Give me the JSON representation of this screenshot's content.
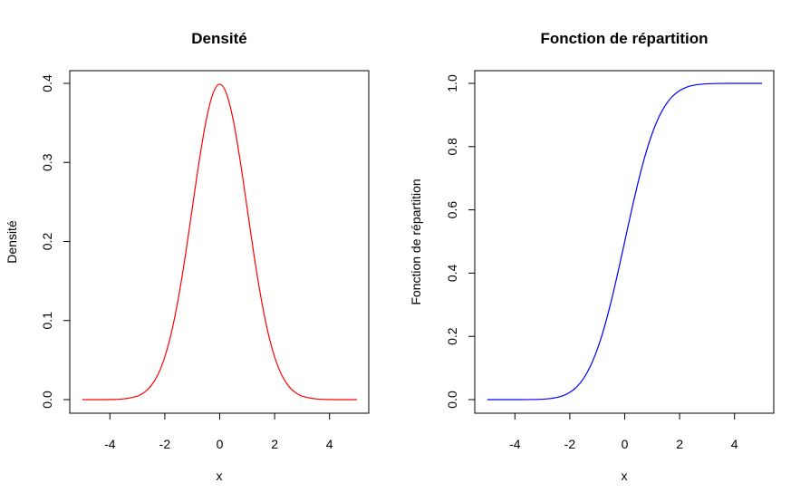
{
  "chart_data": [
    {
      "type": "line",
      "title": "Densité",
      "xlabel": "x",
      "ylabel": "Densité",
      "xlim": [
        -5,
        5
      ],
      "ylim": [
        0,
        0.4
      ],
      "x_ticks": [
        "-4",
        "-2",
        "0",
        "2",
        "4"
      ],
      "y_ticks": [
        "0.0",
        "0.1",
        "0.2",
        "0.3",
        "0.4"
      ],
      "grid": false,
      "series": [
        {
          "color": "#ff0000",
          "x": [
            -5,
            -4.5,
            -4,
            -3.5,
            -3,
            -2.75,
            -2.5,
            -2.25,
            -2,
            -1.75,
            -1.5,
            -1.25,
            -1,
            -0.75,
            -0.5,
            -0.25,
            0,
            0.25,
            0.5,
            0.75,
            1,
            1.25,
            1.5,
            1.75,
            2,
            2.25,
            2.5,
            2.75,
            3,
            3.5,
            4,
            4.5,
            5
          ],
          "y": [
            0.0,
            0.0,
            0.0001,
            0.0009,
            0.0044,
            0.0091,
            0.0175,
            0.0317,
            0.054,
            0.0863,
            0.1295,
            0.1826,
            0.242,
            0.3011,
            0.3521,
            0.3867,
            0.3989,
            0.3867,
            0.3521,
            0.3011,
            0.242,
            0.1826,
            0.1295,
            0.0863,
            0.054,
            0.0317,
            0.0175,
            0.0091,
            0.0044,
            0.0009,
            0.0001,
            0.0,
            0.0
          ]
        }
      ]
    },
    {
      "type": "line",
      "title": "Fonction de répartition",
      "xlabel": "x",
      "ylabel": "Fonction de répartition",
      "xlim": [
        -5,
        5
      ],
      "ylim": [
        0,
        1
      ],
      "x_ticks": [
        "-4",
        "-2",
        "0",
        "2",
        "4"
      ],
      "y_ticks": [
        "0.0",
        "0.2",
        "0.4",
        "0.6",
        "0.8",
        "1.0"
      ],
      "grid": false,
      "series": [
        {
          "color": "#0000ff",
          "x": [
            -5,
            -4.5,
            -4,
            -3.5,
            -3,
            -2.75,
            -2.5,
            -2.25,
            -2,
            -1.75,
            -1.5,
            -1.25,
            -1,
            -0.75,
            -0.5,
            -0.25,
            0,
            0.25,
            0.5,
            0.75,
            1,
            1.25,
            1.5,
            1.75,
            2,
            2.25,
            2.5,
            2.75,
            3,
            3.5,
            4,
            4.5,
            5
          ],
          "y": [
            0.0,
            0.0,
            0.0,
            0.0002,
            0.0013,
            0.003,
            0.0062,
            0.0122,
            0.0228,
            0.0401,
            0.0668,
            0.1056,
            0.1587,
            0.2266,
            0.3085,
            0.4013,
            0.5,
            0.5987,
            0.6915,
            0.7734,
            0.8413,
            0.8944,
            0.9332,
            0.9599,
            0.9772,
            0.9878,
            0.9938,
            0.997,
            0.9987,
            0.9998,
            1.0,
            1.0,
            1.0
          ]
        }
      ]
    }
  ]
}
